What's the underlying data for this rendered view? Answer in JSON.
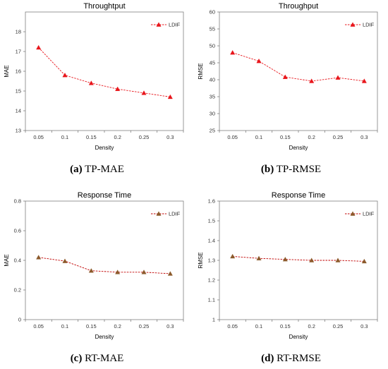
{
  "chart_data": [
    {
      "type": "line",
      "title": "Throughtput",
      "xlabel": "Density",
      "ylabel": "MAE",
      "categories": [
        "0.05",
        "0.1",
        "0.15",
        "0.2",
        "0.25",
        "0.3"
      ],
      "ylim": [
        13,
        19
      ],
      "yticks": [
        "13",
        "14",
        "15",
        "16",
        "17",
        "18"
      ],
      "series": [
        {
          "name": "LDIF",
          "values": [
            17.2,
            15.8,
            15.4,
            15.1,
            14.9,
            14.7
          ],
          "color": "#e8151b",
          "marker": "triangle"
        }
      ],
      "legend": "top-right",
      "grid": false,
      "caption_label": "(a)",
      "caption_text": " TP-MAE"
    },
    {
      "type": "line",
      "title": "Throughput",
      "xlabel": "Density",
      "ylabel": "RMSE",
      "categories": [
        "0.05",
        "0.1",
        "0.15",
        "0.2",
        "0.25",
        "0.3"
      ],
      "ylim": [
        25,
        60
      ],
      "yticks": [
        "25",
        "30",
        "35",
        "40",
        "45",
        "50",
        "55",
        "60"
      ],
      "series": [
        {
          "name": "LDIF",
          "values": [
            48,
            45.5,
            40.8,
            39.6,
            40.6,
            39.6
          ],
          "color": "#e8151b",
          "marker": "triangle"
        }
      ],
      "legend": "top-right",
      "grid": false,
      "caption_label": "(b)",
      "caption_text": " TP-RMSE"
    },
    {
      "type": "line",
      "title": "Response Time",
      "xlabel": "Density",
      "ylabel": "MAE",
      "categories": [
        "0.05",
        "0.1",
        "0.15",
        "0.2",
        "0.25",
        "0.3"
      ],
      "ylim": [
        0,
        0.8
      ],
      "yticks": [
        "0",
        "0.2",
        "0.4",
        "0.6",
        "0.8"
      ],
      "series": [
        {
          "name": "LDIF",
          "values": [
            0.42,
            0.395,
            0.33,
            0.32,
            0.32,
            0.31
          ],
          "color": "#8b5a2b",
          "line_color": "#c00000",
          "marker": "triangle"
        }
      ],
      "legend": "top-right",
      "grid": false,
      "caption_label": "(c)",
      "caption_text": " RT-MAE"
    },
    {
      "type": "line",
      "title": "Response Time",
      "xlabel": "Density",
      "ylabel": "RMSE",
      "categories": [
        "0.05",
        "0.1",
        "0.15",
        "0.2",
        "0.25",
        "0.3"
      ],
      "ylim": [
        1,
        1.6
      ],
      "yticks": [
        "1",
        "1.1",
        "1.2",
        "1.3",
        "1.4",
        "1.5",
        "1.6"
      ],
      "series": [
        {
          "name": "LDIF",
          "values": [
            1.32,
            1.31,
            1.305,
            1.3,
            1.3,
            1.295
          ],
          "color": "#8b5a2b",
          "line_color": "#c00000",
          "marker": "triangle"
        }
      ],
      "legend": "top-right",
      "grid": false,
      "caption_label": "(d)",
      "caption_text": " RT-RMSE"
    }
  ]
}
